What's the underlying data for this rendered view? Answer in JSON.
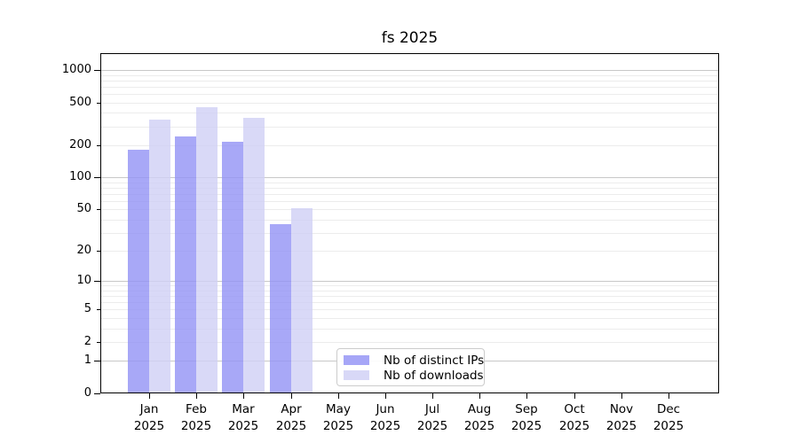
{
  "chart_data": {
    "type": "bar",
    "title": "fs 2025",
    "categories": [
      [
        "Jan",
        "2025"
      ],
      [
        "Feb",
        "2025"
      ],
      [
        "Mar",
        "2025"
      ],
      [
        "Apr",
        "2025"
      ],
      [
        "May",
        "2025"
      ],
      [
        "Jun",
        "2025"
      ],
      [
        "Jul",
        "2025"
      ],
      [
        "Aug",
        "2025"
      ],
      [
        "Sep",
        "2025"
      ],
      [
        "Oct",
        "2025"
      ],
      [
        "Nov",
        "2025"
      ],
      [
        "Dec",
        "2025"
      ]
    ],
    "series": [
      {
        "name": "Nb of distinct IPs",
        "values": [
          183,
          243,
          215,
          36,
          null,
          null,
          null,
          null,
          null,
          null,
          null,
          null
        ],
        "bar_color": "rgba(146,146,245,0.8)",
        "legend_color": "#a6a6f7"
      },
      {
        "name": "Nb of downloads",
        "values": [
          348,
          453,
          360,
          51,
          null,
          null,
          null,
          null,
          null,
          null,
          null,
          null
        ],
        "bar_color": "rgba(207,207,245,0.8)",
        "legend_color": "#d8d8f7"
      }
    ],
    "yscale": "log1p",
    "ylim": [
      0,
      1434
    ],
    "y_tick_values": [
      0,
      1,
      2,
      5,
      10,
      20,
      50,
      100,
      200,
      500,
      1000
    ],
    "y_major_values": [
      0,
      1,
      10,
      100,
      1000
    ],
    "grid": "horizontal",
    "legend_position": "lower-center"
  },
  "colors": {
    "grid_minor": "#ececec",
    "grid_major": "#c8c8c8",
    "axis": "#000000",
    "background": "#ffffff"
  }
}
